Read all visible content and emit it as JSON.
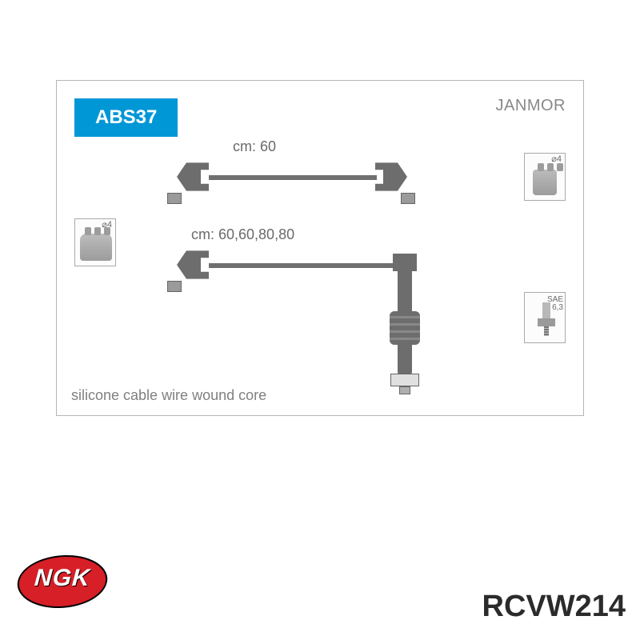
{
  "card": {
    "product_code": "ABS37",
    "brand": "JANMOR",
    "length_label_1": "cm: 60",
    "length_label_2": "cm: 60,60,80,80",
    "footer": "silicone cable wire wound core",
    "badge_bg": "#0097d6",
    "badge_fg": "#ffffff",
    "text_color": "#6a6a6a",
    "border_color": "#b5b5b5"
  },
  "insets": {
    "distributor_dim": "⌀4",
    "coil_dim": "⌀4",
    "plug_label_top": "SAE",
    "plug_label_bottom": "⌀ 6,3"
  },
  "logo": {
    "text": "NGK",
    "bg": "#d61f26",
    "fg": "#ffffff"
  },
  "part_number": "RCVW214"
}
